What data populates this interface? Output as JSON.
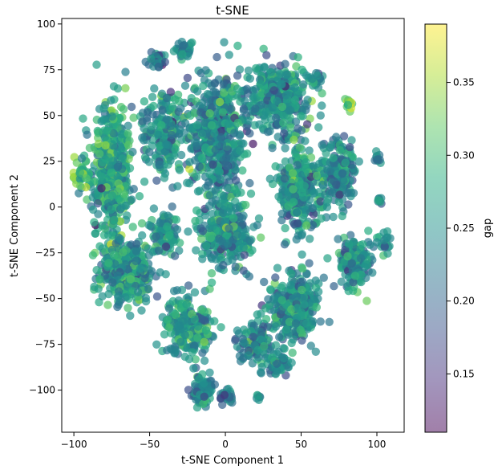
{
  "chart_data": {
    "type": "scatter",
    "title": "t-SNE",
    "xlabel": "t-SNE Component 1",
    "ylabel": "t-SNE Component 2",
    "xlim": [
      -108,
      118
    ],
    "ylim": [
      -123,
      103
    ],
    "xticks": [
      -100,
      -50,
      0,
      50,
      100
    ],
    "yticks": [
      -100,
      -75,
      -50,
      -25,
      0,
      25,
      50,
      75,
      100
    ],
    "grid": false,
    "colorbar": {
      "label": "gap",
      "range": [
        0.11,
        0.39
      ],
      "ticks": [
        0.15,
        0.2,
        0.25,
        0.3,
        0.35
      ],
      "colormap": "viridis",
      "alpha": 0.5
    },
    "marker_alpha": 0.7,
    "clusters": [
      {
        "center": [
          -75,
          20
        ],
        "spread": [
          12,
          35
        ],
        "n": 420,
        "gap_mean": 0.27
      },
      {
        "center": [
          -65,
          -35
        ],
        "spread": [
          16,
          16
        ],
        "n": 360,
        "gap_mean": 0.26
      },
      {
        "center": [
          -40,
          40
        ],
        "spread": [
          12,
          20
        ],
        "n": 220,
        "gap_mean": 0.25
      },
      {
        "center": [
          -25,
          -65
        ],
        "spread": [
          14,
          14
        ],
        "n": 220,
        "gap_mean": 0.26
      },
      {
        "center": [
          -5,
          40
        ],
        "spread": [
          18,
          30
        ],
        "n": 520,
        "gap_mean": 0.24
      },
      {
        "center": [
          0,
          -15
        ],
        "spread": [
          16,
          18
        ],
        "n": 280,
        "gap_mean": 0.25
      },
      {
        "center": [
          35,
          60
        ],
        "spread": [
          20,
          16
        ],
        "n": 340,
        "gap_mean": 0.25
      },
      {
        "center": [
          50,
          10
        ],
        "spread": [
          14,
          20
        ],
        "n": 300,
        "gap_mean": 0.25
      },
      {
        "center": [
          75,
          20
        ],
        "spread": [
          10,
          18
        ],
        "n": 160,
        "gap_mean": 0.24
      },
      {
        "center": [
          45,
          -55
        ],
        "spread": [
          14,
          16
        ],
        "n": 330,
        "gap_mean": 0.25
      },
      {
        "center": [
          85,
          -30
        ],
        "spread": [
          10,
          12
        ],
        "n": 160,
        "gap_mean": 0.25
      },
      {
        "center": [
          -15,
          -100
        ],
        "spread": [
          7,
          7
        ],
        "n": 90,
        "gap_mean": 0.24
      },
      {
        "center": [
          20,
          -75
        ],
        "spread": [
          10,
          10
        ],
        "n": 110,
        "gap_mean": 0.24
      },
      {
        "center": [
          35,
          -85
        ],
        "spread": [
          6,
          6
        ],
        "n": 50,
        "gap_mean": 0.25
      },
      {
        "center": [
          0,
          -103
        ],
        "spread": [
          5,
          3
        ],
        "n": 30,
        "gap_mean": 0.22
      },
      {
        "center": [
          -40,
          -15
        ],
        "spread": [
          8,
          12
        ],
        "n": 90,
        "gap_mean": 0.25
      },
      {
        "center": [
          -45,
          80
        ],
        "spread": [
          5,
          4
        ],
        "n": 30,
        "gap_mean": 0.22
      },
      {
        "center": [
          -28,
          86
        ],
        "spread": [
          5,
          4
        ],
        "n": 35,
        "gap_mean": 0.25
      },
      {
        "center": [
          100,
          27
        ],
        "spread": [
          3,
          3
        ],
        "n": 10,
        "gap_mean": 0.23
      },
      {
        "center": [
          102,
          4
        ],
        "spread": [
          2,
          3
        ],
        "n": 8,
        "gap_mean": 0.23
      },
      {
        "center": [
          105,
          -20
        ],
        "spread": [
          4,
          6
        ],
        "n": 20,
        "gap_mean": 0.24
      },
      {
        "center": [
          82,
          57
        ],
        "spread": [
          3,
          3
        ],
        "n": 12,
        "gap_mean": 0.33
      },
      {
        "center": [
          -95,
          18
        ],
        "spread": [
          5,
          10
        ],
        "n": 40,
        "gap_mean": 0.3
      },
      {
        "center": [
          60,
          70
        ],
        "spread": [
          4,
          4
        ],
        "n": 15,
        "gap_mean": 0.24
      },
      {
        "center": [
          22,
          -104
        ],
        "spread": [
          2,
          2
        ],
        "n": 6,
        "gap_mean": 0.24
      }
    ]
  }
}
